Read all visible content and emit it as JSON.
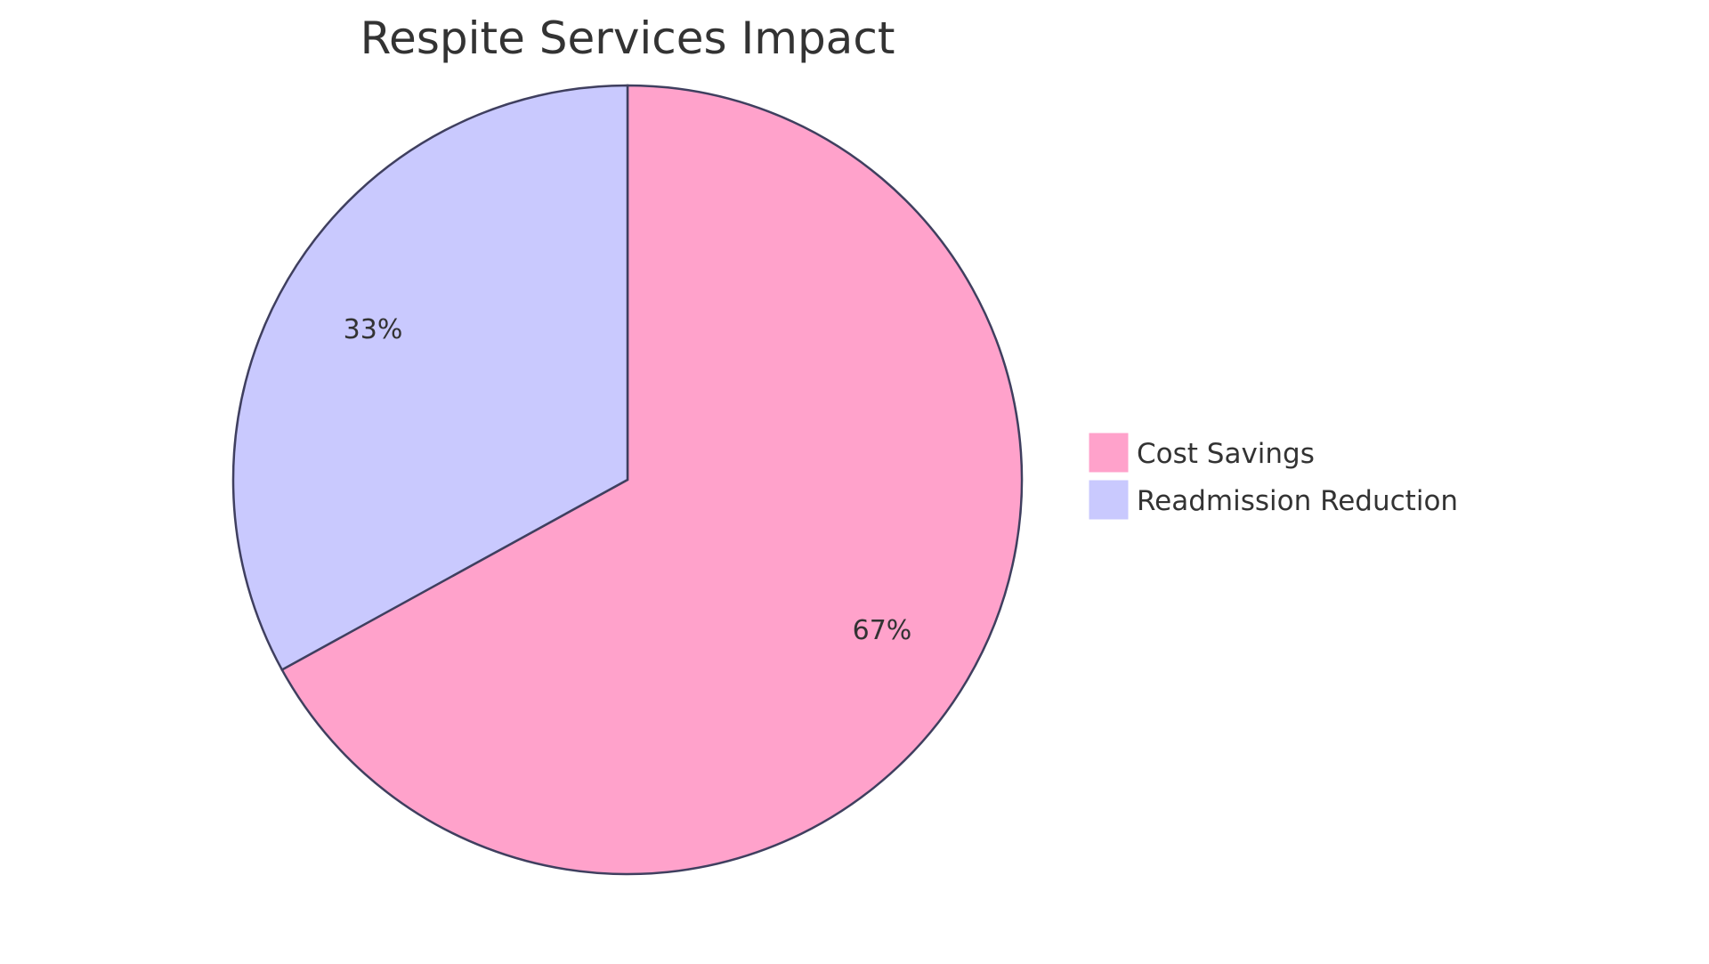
{
  "chart_data": {
    "type": "pie",
    "title": "Respite Services Impact",
    "slices": [
      {
        "label": "Cost Savings",
        "value": 67,
        "display": "67%",
        "color": "#FFA2CB"
      },
      {
        "label": "Readmission Reduction",
        "value": 33,
        "display": "33%",
        "color": "#C9C9FE"
      }
    ],
    "stroke_color": "#3F3F5F",
    "legend_position": "right"
  }
}
